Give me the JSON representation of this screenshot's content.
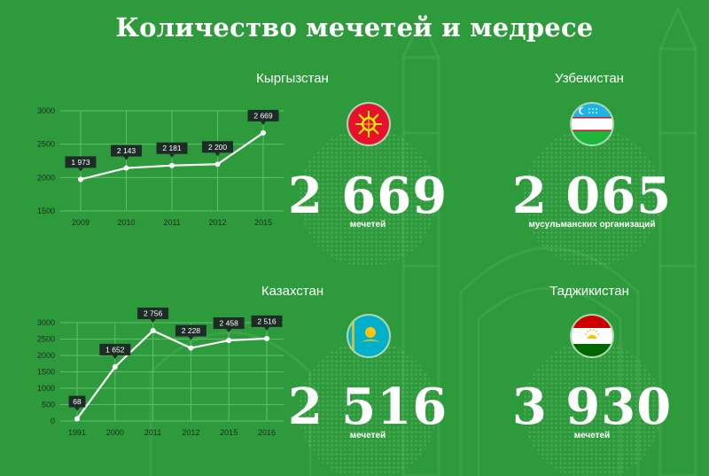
{
  "title": "Количество мечетей и медресе",
  "colors": {
    "background": "#2d9b3b",
    "line": "#ffffff",
    "gridline": "#5fc06c",
    "label_box": "#1d2c26",
    "axis_text": "#1f2a22"
  },
  "sections": {
    "kyrgyzstan": {
      "title": "Кыргызстан",
      "number": "2 669",
      "caption": "мечетей",
      "flag_icon": "kyrgyzstan-flag-icon"
    },
    "uzbekistan": {
      "title": "Узбекистан",
      "number": "2 065",
      "caption": "мусульманских организаций",
      "flag_icon": "uzbekistan-flag-icon"
    },
    "kazakhstan": {
      "title": "Казахстан",
      "number": "2 516",
      "caption": "мечетей",
      "flag_icon": "kazakhstan-flag-icon"
    },
    "tajikistan": {
      "title": "Таджикистан",
      "number": "3 930",
      "caption": "мечетей",
      "flag_icon": "tajikistan-flag-icon"
    }
  },
  "chart_data": [
    {
      "type": "line",
      "categories": [
        "2009",
        "2010",
        "2011",
        "2012",
        "2015"
      ],
      "values": [
        1973,
        2143,
        2181,
        2200,
        2669
      ],
      "data_labels": [
        "1 973",
        "2 143",
        "2 181",
        "2 200",
        "2 669"
      ],
      "yticks": [
        1500,
        2000,
        2500,
        3000
      ],
      "ylim": [
        1500,
        3000
      ],
      "grid": true
    },
    {
      "type": "line",
      "categories": [
        "1991",
        "2000",
        "2011",
        "2012",
        "2015",
        "2016"
      ],
      "values": [
        68,
        1652,
        2756,
        2228,
        2458,
        2516
      ],
      "data_labels": [
        "68",
        "1 652",
        "2 756",
        "2 228",
        "2 458",
        "2 516"
      ],
      "yticks": [
        0,
        500,
        1000,
        1500,
        2000,
        2500,
        3000
      ],
      "ylim": [
        0,
        3000
      ],
      "grid": true
    }
  ]
}
